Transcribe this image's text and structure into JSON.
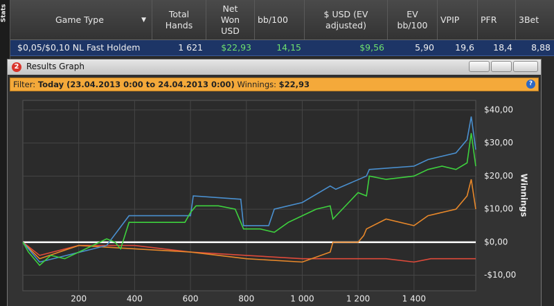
{
  "sidebar": "Stats",
  "table": {
    "headers": [
      "Game Type",
      "Total Hands",
      "Net Won USD",
      "bb/100",
      "$ USD (EV adjusted)",
      "EV bb/100",
      "VPIP",
      "PFR",
      "3Bet"
    ],
    "rows": [
      [
        "$0,05/$0,10 NL Fast Holdem",
        "1 621",
        "$22,93",
        "14,15",
        "$9,56",
        "5,90",
        "19,6",
        "18,4",
        "8,88"
      ]
    ]
  },
  "window": {
    "badge": "2",
    "title": "Results Graph",
    "filter": [
      "Filter:",
      "Today (23.04.2013 0:00 to 24.04.2013 0:00)",
      "Winnings:",
      "$22,93"
    ],
    "help": "?"
  },
  "graph": {
    "type": "line",
    "y_label": "Winnings",
    "xlim": [
      0,
      1621
    ],
    "ylim": [
      -14.7,
      42.9
    ],
    "xticks": [
      200,
      400,
      600,
      800,
      {
        "value": 1000,
        "label": "1 000"
      },
      {
        "value": 1200,
        "label": "1 200"
      },
      {
        "value": 1400,
        "label": "1 400"
      }
    ],
    "yticks": [
      {
        "value": 40,
        "label": "$40,00"
      },
      {
        "value": 30,
        "label": "$30,00"
      },
      {
        "value": 20,
        "label": "$20,00"
      },
      {
        "value": 10,
        "label": "$10,00"
      },
      {
        "value": 0,
        "label": "$0,00"
      },
      {
        "value": -10,
        "label": "-$10,00"
      }
    ],
    "grid": true,
    "series": [
      {
        "color": "#e04a3a",
        "x": [
          0,
          60,
          200,
          400,
          600,
          800,
          1000,
          1200,
          1300,
          1400,
          1460,
          1550,
          1621
        ],
        "values": [
          0,
          -4,
          -1,
          -1,
          -3,
          -4,
          -5,
          -5,
          -5,
          -6,
          -5,
          -5,
          -5
        ]
      },
      {
        "color": "#e8882a",
        "x": [
          0,
          60,
          200,
          400,
          600,
          800,
          1000,
          1100,
          1110,
          1200,
          1220,
          1230,
          1300,
          1400,
          1450,
          1550,
          1590,
          1605,
          1621
        ],
        "values": [
          0,
          -5,
          -1,
          -2,
          -3,
          -5,
          -6,
          -3,
          0,
          0,
          2,
          4,
          7,
          5,
          8,
          10,
          14,
          19,
          10
        ]
      },
      {
        "color": "#4a90d0",
        "x": [
          0,
          60,
          300,
          380,
          600,
          610,
          780,
          790,
          880,
          900,
          1000,
          1100,
          1120,
          1230,
          1240,
          1400,
          1450,
          1550,
          1590,
          1605,
          1621
        ],
        "values": [
          0,
          -6,
          -1,
          8,
          8,
          14,
          13,
          5,
          5,
          10,
          12,
          17,
          16,
          20,
          22,
          23,
          25,
          27,
          31,
          38,
          28
        ]
      },
      {
        "color": "#3ed23e",
        "x": [
          0,
          20,
          60,
          100,
          150,
          250,
          300,
          330,
          350,
          380,
          450,
          580,
          600,
          620,
          700,
          760,
          790,
          850,
          900,
          950,
          1000,
          1050,
          1100,
          1110,
          1200,
          1230,
          1240,
          1300,
          1400,
          1450,
          1500,
          1550,
          1590,
          1605,
          1621
        ],
        "values": [
          0,
          -3,
          -7,
          -4,
          -5,
          -1,
          1,
          0,
          -2,
          6,
          6,
          6,
          9,
          11,
          11,
          10,
          4,
          4,
          3,
          6,
          8,
          10,
          11,
          7,
          15,
          14,
          20,
          19,
          20,
          22,
          23,
          22,
          24,
          33,
          23
        ]
      }
    ]
  }
}
